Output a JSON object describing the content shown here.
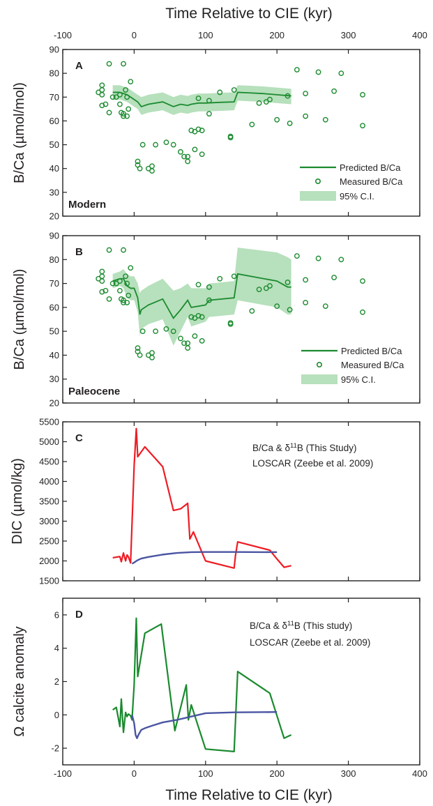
{
  "figure": {
    "top_axis_label": "Time Relative to CIE (kyr)",
    "bottom_axis_label": "Time Relative to CIE (kyr)",
    "x_ticks": [
      -100,
      0,
      100,
      200,
      300,
      400
    ],
    "x_range": [
      -100,
      400
    ]
  },
  "colors": {
    "green": "#1a8a2e",
    "band": "#b7e0bc",
    "red": "#ee1c24",
    "blue": "#4a55a2",
    "axis": "#231f20"
  },
  "chart_data": [
    {
      "panel": "A",
      "type": "line+scatter",
      "corner_label": "Modern",
      "ylabel": "B/Ca (µmol/mol)",
      "ylim": [
        20,
        90
      ],
      "yticks": [
        20,
        30,
        40,
        50,
        60,
        70,
        80,
        90
      ],
      "legend": [
        "Predicted B/Ca",
        "Measured B/Ca",
        "95% C.I."
      ],
      "predicted": {
        "x": [
          -30,
          -20,
          -10,
          -5,
          0,
          5,
          10,
          20,
          40,
          55,
          65,
          75,
          80,
          90,
          100,
          120,
          140,
          145,
          160,
          180,
          200,
          220
        ],
        "y": [
          72,
          72,
          71,
          70,
          69,
          68,
          66,
          67,
          68,
          66,
          67,
          66.5,
          67,
          67.5,
          67.5,
          67.8,
          68,
          72,
          71.8,
          71.5,
          71,
          70.5
        ]
      },
      "ci_upper": [
        75,
        75,
        74,
        73,
        72,
        71,
        70,
        71,
        72,
        70,
        71,
        70.5,
        71,
        71.5,
        71.5,
        71.8,
        72,
        75,
        74.8,
        74.5,
        74,
        73.5
      ],
      "ci_lower": [
        69,
        69,
        68,
        67,
        66,
        65,
        62.5,
        63.5,
        64.5,
        62.5,
        63.5,
        63,
        63.5,
        64,
        64,
        64.2,
        64.5,
        68.5,
        68.3,
        68,
        67.5,
        67
      ],
      "measured": {
        "x": [
          -50,
          -45,
          -45,
          -45,
          -45,
          -40,
          -35,
          -35,
          -30,
          -25,
          -20,
          -20,
          -18,
          -15,
          -15,
          -15,
          -12,
          -10,
          -10,
          -8,
          -5,
          5,
          5,
          8,
          12,
          20,
          25,
          25,
          30,
          45,
          55,
          65,
          70,
          75,
          75,
          80,
          85,
          85,
          90,
          90,
          95,
          95,
          105,
          105,
          120,
          135,
          135,
          140,
          165,
          175,
          185,
          190,
          200,
          215,
          218,
          228,
          240,
          240,
          258,
          268,
          280,
          290,
          320,
          320
        ],
        "y": [
          72,
          75,
          73,
          71,
          66.5,
          67,
          63.5,
          84,
          70,
          70,
          67,
          71,
          63.5,
          62,
          63,
          84,
          73,
          70,
          62,
          65,
          76.5,
          41.5,
          43,
          40,
          50,
          40,
          41,
          39,
          50,
          51,
          50,
          47,
          45,
          45,
          43,
          56,
          55.5,
          48,
          69.5,
          56.5,
          46,
          56,
          68.5,
          63,
          72,
          53.5,
          53,
          73,
          58.5,
          67.5,
          68,
          69,
          60.5,
          70.5,
          59,
          81.5,
          71.5,
          62,
          80.5,
          60.5,
          72.5,
          80,
          71,
          58
        ]
      }
    },
    {
      "panel": "B",
      "type": "line+scatter",
      "corner_label": "Paleocene",
      "ylabel": "B/Ca (µmol/mol)",
      "ylim": [
        20,
        90
      ],
      "yticks": [
        20,
        30,
        40,
        50,
        60,
        70,
        80,
        90
      ],
      "legend": [
        "Predicted B/Ca",
        "Measured B/Ca",
        "95% C.I."
      ],
      "predicted": {
        "x": [
          -30,
          -20,
          -15,
          -10,
          -5,
          0,
          5,
          8,
          10,
          20,
          40,
          55,
          65,
          75,
          80,
          100,
          105,
          140,
          145,
          200,
          215,
          220
        ],
        "y": [
          71,
          72,
          72,
          69,
          68,
          68,
          64,
          57,
          59,
          61,
          63.5,
          55.5,
          59,
          63,
          60,
          61,
          63,
          64,
          74,
          71,
          68.5,
          68.5
        ]
      },
      "ci_upper": [
        74,
        75,
        76,
        74,
        73,
        73,
        70,
        66,
        67,
        69,
        72,
        67,
        68,
        70,
        68,
        68,
        70,
        71,
        85,
        83,
        81,
        80
      ],
      "ci_lower": [
        68,
        69,
        68,
        64,
        63,
        63,
        58,
        48,
        51,
        53,
        55,
        44,
        50,
        56,
        52,
        54,
        56,
        57,
        63,
        60,
        57,
        57
      ],
      "measured": {
        "x": [
          -50,
          -45,
          -45,
          -45,
          -45,
          -40,
          -35,
          -35,
          -30,
          -25,
          -20,
          -20,
          -18,
          -15,
          -15,
          -15,
          -12,
          -10,
          -10,
          -8,
          -5,
          5,
          5,
          8,
          12,
          20,
          25,
          25,
          30,
          45,
          55,
          65,
          70,
          75,
          75,
          80,
          85,
          85,
          90,
          90,
          95,
          95,
          105,
          105,
          120,
          135,
          135,
          140,
          165,
          175,
          185,
          190,
          200,
          215,
          218,
          228,
          240,
          240,
          258,
          268,
          280,
          290,
          320,
          320
        ],
        "y": [
          72,
          75,
          73,
          71,
          66.5,
          67,
          63.5,
          84,
          70,
          70,
          67,
          71,
          63.5,
          62,
          63,
          84,
          73,
          70,
          62,
          65,
          76.5,
          41.5,
          43,
          40,
          50,
          40,
          41,
          39,
          50,
          51,
          50,
          47,
          45,
          45,
          43,
          56,
          55.5,
          48,
          69.5,
          56.5,
          46,
          56,
          68.5,
          63,
          72,
          53.5,
          53,
          73,
          58.5,
          67.5,
          68,
          69,
          60.5,
          70.5,
          59,
          81.5,
          71.5,
          62,
          80.5,
          60.5,
          72.5,
          80,
          71,
          58
        ]
      }
    },
    {
      "panel": "C",
      "type": "line",
      "ylabel": "DIC (µmol/kg)",
      "ylim": [
        1500,
        5500
      ],
      "yticks": [
        1500,
        2000,
        2500,
        3000,
        3500,
        4000,
        4500,
        5000,
        5500
      ],
      "series": [
        {
          "name_main": "B/Ca & δ",
          "name_sup": "11",
          "name_tail": "B (This Study)",
          "color": "red",
          "x": [
            -30,
            -20,
            -18,
            -15,
            -12,
            -10,
            -8,
            -5,
            0,
            3,
            5,
            15,
            40,
            55,
            65,
            75,
            78,
            83,
            100,
            140,
            142,
            145,
            190,
            200,
            210,
            220
          ],
          "y": [
            2080,
            2110,
            1980,
            2200,
            2000,
            2150,
            2100,
            1950,
            4400,
            5330,
            4620,
            4870,
            4370,
            3270,
            3310,
            3450,
            2550,
            2730,
            2000,
            1820,
            2150,
            2480,
            2270,
            2050,
            1840,
            1880
          ]
        },
        {
          "name_main": "LOSCAR (Zeebe et al. 2009)",
          "name_sup": "",
          "name_tail": "",
          "color": "blue",
          "x": [
            -3,
            0,
            2,
            5,
            10,
            20,
            40,
            60,
            80,
            100,
            140,
            200
          ],
          "y": [
            1930,
            1960,
            1985,
            2020,
            2060,
            2100,
            2160,
            2200,
            2220,
            2225,
            2225,
            2220
          ]
        }
      ]
    },
    {
      "panel": "D",
      "type": "line",
      "ylabel": "Ω calcite anomaly",
      "ylim": [
        -3,
        7
      ],
      "yticks": [
        -2,
        0,
        2,
        4,
        6
      ],
      "series": [
        {
          "name_main": "B/Ca & δ",
          "name_sup": "11",
          "name_tail": "B (This study)",
          "color": "green",
          "x": [
            -30,
            -25,
            -20,
            -18,
            -15,
            -12,
            -10,
            -8,
            -5,
            -3,
            0,
            3,
            5,
            15,
            38,
            57,
            73,
            76,
            80,
            100,
            140,
            145,
            190,
            210,
            220
          ],
          "y": [
            0.3,
            0.45,
            -0.7,
            0.95,
            -1.05,
            0.15,
            -0.1,
            0.05,
            -0.05,
            -0.3,
            1.8,
            5.8,
            2.3,
            4.9,
            5.45,
            -0.95,
            1.8,
            -0.3,
            0.6,
            -2.05,
            -2.2,
            2.6,
            1.3,
            -1.4,
            -1.2
          ]
        },
        {
          "name_main": "LOSCAR (Zeebe et al. 2009)",
          "name_sup": "",
          "name_tail": "",
          "color": "blue",
          "x": [
            -3,
            0,
            2,
            4,
            6,
            10,
            15,
            25,
            40,
            60,
            80,
            100,
            140,
            200
          ],
          "y": [
            0.0,
            -0.5,
            -1.2,
            -1.4,
            -1.2,
            -0.9,
            -0.8,
            -0.65,
            -0.45,
            -0.3,
            -0.1,
            0.1,
            0.15,
            0.17
          ]
        }
      ]
    }
  ]
}
